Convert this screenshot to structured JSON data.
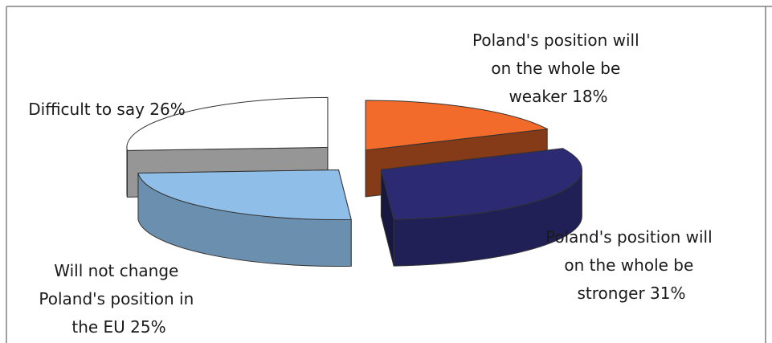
{
  "chart_data": {
    "type": "pie",
    "title": "",
    "categories": [
      "Poland's position will on the whole be weaker",
      "Poland's position will on the whole be stronger",
      "Will not change Poland's position in the EU",
      "Difficult to say"
    ],
    "values": [
      18,
      31,
      25,
      26
    ],
    "unit": "%",
    "data_labels": {
      "weaker": [
        "Poland's position will",
        "on the whole be",
        "weaker 18%"
      ],
      "stronger": [
        "Poland's position will",
        "on the whole be",
        "stronger 31%"
      ],
      "nochange": [
        "Will not change",
        "Poland's position in",
        "the EU 25%"
      ],
      "difficult": [
        "Difficult to say 26%"
      ]
    },
    "colors": {
      "weaker": "#f26b2a",
      "stronger": "#2b2a73",
      "nochange": "#8fbfe8",
      "difficult": "#ffffff"
    },
    "exploded": true,
    "three_d": true
  }
}
